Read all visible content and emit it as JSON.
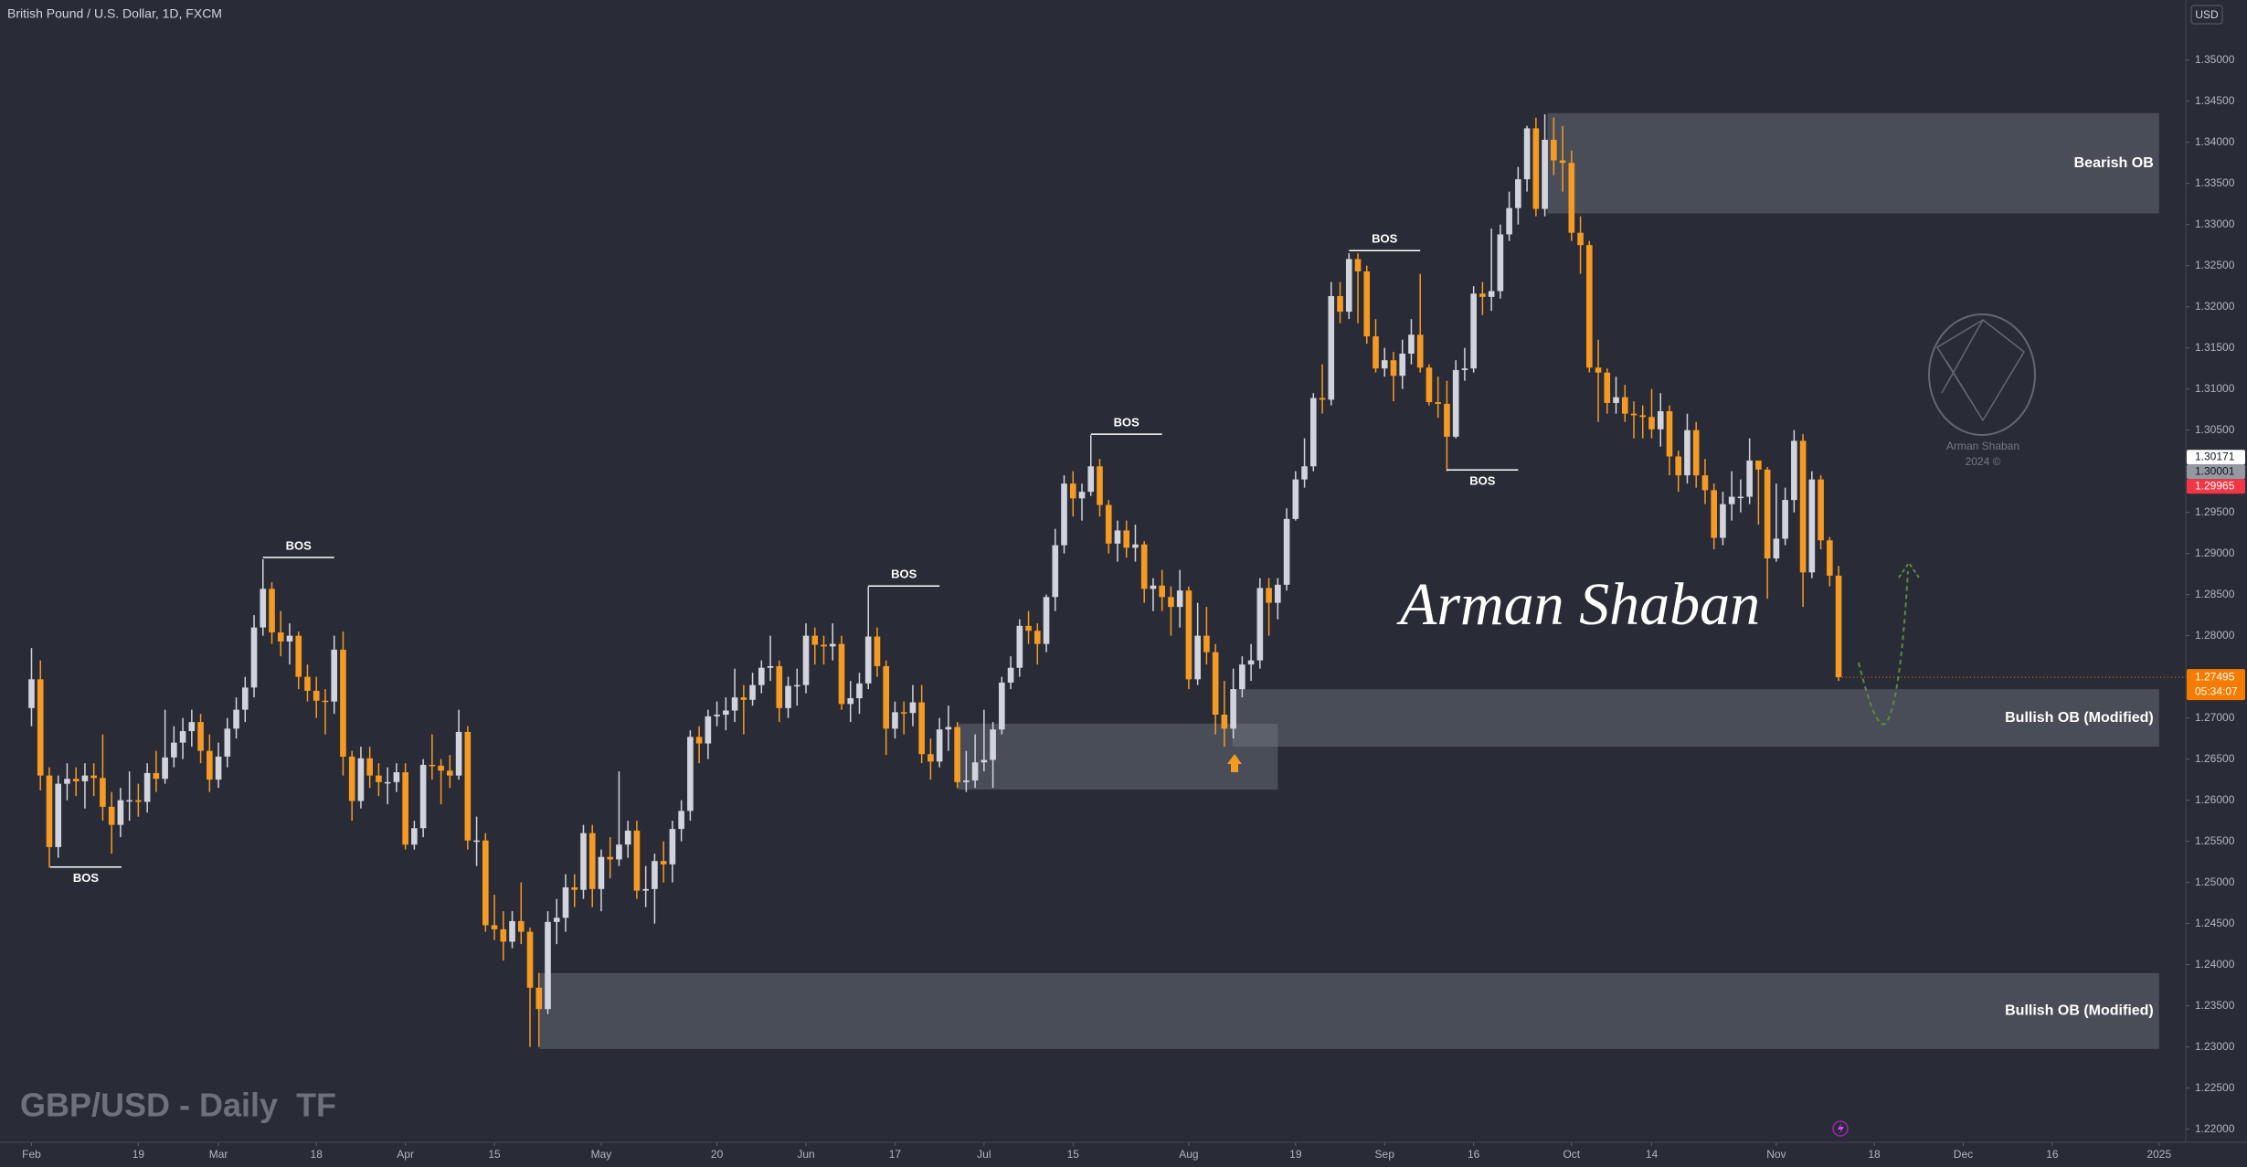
{
  "chart_data": {
    "type": "candlestick",
    "title": "British Pound / U.S. Dollar, 1D, FXCM",
    "currency": "USD",
    "watermark": "GBP/USD - Daily  TF",
    "signature": "Arman Shaban",
    "logo_text": [
      "Arman Shaban",
      "2024 ©"
    ],
    "up_color": "#d1d4dc",
    "down_color": "#f59a23",
    "xlim": [
      -3.54,
      242
    ],
    "ylim": [
      1.2184,
      1.3573
    ],
    "xticks": [
      {
        "value": 0,
        "label": "Feb"
      },
      {
        "value": 12,
        "label": "19"
      },
      {
        "value": 21,
        "label": "Mar"
      },
      {
        "value": 32,
        "label": "18"
      },
      {
        "value": 42,
        "label": "Apr"
      },
      {
        "value": 52,
        "label": "15"
      },
      {
        "value": 64,
        "label": "May"
      },
      {
        "value": 77,
        "label": "20"
      },
      {
        "value": 87,
        "label": "Jun"
      },
      {
        "value": 97,
        "label": "17"
      },
      {
        "value": 107,
        "label": "Jul"
      },
      {
        "value": 117,
        "label": "15"
      },
      {
        "value": 130,
        "label": "Aug"
      },
      {
        "value": 142,
        "label": "19"
      },
      {
        "value": 152,
        "label": "Sep"
      },
      {
        "value": 162,
        "label": "16"
      },
      {
        "value": 173,
        "label": "Oct"
      },
      {
        "value": 182,
        "label": "14"
      },
      {
        "value": 196,
        "label": "Nov"
      },
      {
        "value": 207,
        "label": "18"
      },
      {
        "value": 217,
        "label": "Dec"
      },
      {
        "value": 227,
        "label": "16"
      },
      {
        "value": 239,
        "label": "2025"
      }
    ],
    "yticks": [
      {
        "value": 1.22,
        "label": "1.22000"
      },
      {
        "value": 1.225,
        "label": "1.22500"
      },
      {
        "value": 1.23,
        "label": "1.23000"
      },
      {
        "value": 1.235,
        "label": "1.23500"
      },
      {
        "value": 1.24,
        "label": "1.24000"
      },
      {
        "value": 1.245,
        "label": "1.24500"
      },
      {
        "value": 1.25,
        "label": "1.25000"
      },
      {
        "value": 1.255,
        "label": "1.25500"
      },
      {
        "value": 1.26,
        "label": "1.26000"
      },
      {
        "value": 1.265,
        "label": "1.26500"
      },
      {
        "value": 1.27,
        "label": "1.27000"
      },
      {
        "value": 1.275,
        "label": "1.27500"
      },
      {
        "value": 1.28,
        "label": "1.28000"
      },
      {
        "value": 1.285,
        "label": "1.28500"
      },
      {
        "value": 1.29,
        "label": "1.29000"
      },
      {
        "value": 1.295,
        "label": "1.29500"
      },
      {
        "value": 1.3,
        "label": "1.30000"
      },
      {
        "value": 1.305,
        "label": "1.30500"
      },
      {
        "value": 1.31,
        "label": "1.31000"
      },
      {
        "value": 1.315,
        "label": "1.31500"
      },
      {
        "value": 1.32,
        "label": "1.32000"
      },
      {
        "value": 1.325,
        "label": "1.32500"
      },
      {
        "value": 1.33,
        "label": "1.33000"
      },
      {
        "value": 1.335,
        "label": "1.33500"
      },
      {
        "value": 1.34,
        "label": "1.34000"
      },
      {
        "value": 1.345,
        "label": "1.34500"
      },
      {
        "value": 1.35,
        "label": "1.35000"
      }
    ],
    "open": [
      1.2712,
      1.2747,
      1.263,
      1.2543,
      1.262,
      1.2626,
      1.2623,
      1.263,
      1.2627,
      1.2592,
      1.257,
      1.26,
      1.26,
      1.2598,
      1.2633,
      1.2626,
      1.2652,
      1.267,
      1.2684,
      1.2695,
      1.266,
      1.2625,
      1.2653,
      1.2687,
      1.271,
      1.2737,
      1.281,
      1.2857,
      1.2804,
      1.2793,
      1.28,
      1.275,
      1.2733,
      1.2721,
      1.272,
      1.2783,
      1.2653,
      1.2599,
      1.2651,
      1.263,
      1.2622,
      1.2622,
      1.2634,
      1.2546,
      1.2566,
      1.2643,
      1.2642,
      1.2636,
      1.263,
      1.2683,
      1.2551,
      1.2551,
      1.2448,
      1.2443,
      1.2428,
      1.2453,
      1.244,
      1.2372,
      1.2346,
      1.2452,
      1.2457,
      1.2494,
      1.2491,
      1.256,
      1.2492,
      1.2531,
      1.2528,
      1.2546,
      1.2563,
      1.249,
      1.2492,
      1.2526,
      1.2522,
      1.2565,
      1.2587,
      1.2677,
      1.2669,
      1.2702,
      1.2704,
      1.2709,
      1.2725,
      1.2722,
      1.274,
      1.2761,
      1.2763,
      1.2712,
      1.2739,
      1.274,
      1.28,
      1.2789,
      1.2787,
      1.279,
      1.2717,
      1.2724,
      1.2742,
      1.2799,
      1.2763,
      1.2687,
      1.2707,
      1.2706,
      1.2719,
      1.2656,
      1.2647,
      1.2686,
      1.2689,
      1.2622,
      1.2624,
      1.2646,
      1.2649,
      1.2686,
      1.2743,
      1.2761,
      1.2812,
      1.2806,
      1.279,
      1.2847,
      1.291,
      1.2985,
      1.2967,
      1.2975,
      1.3006,
      1.2959,
      1.2912,
      1.2928,
      1.2907,
      1.2911,
      1.2857,
      1.2861,
      1.2847,
      1.2835,
      1.2855,
      1.2747,
      1.28,
      1.278,
      1.2704,
      1.2687,
      1.2735,
      1.2765,
      1.277,
      1.2858,
      1.284,
      1.2862,
      1.2942,
      1.299,
      1.3006,
      1.3089,
      1.3087,
      1.3213,
      1.3194,
      1.3258,
      1.3243,
      1.3164,
      1.3125,
      1.3135,
      1.3116,
      1.3143,
      1.3166,
      1.3126,
      1.3084,
      1.3082,
      1.3042,
      1.3123,
      1.3125,
      1.3216,
      1.3212,
      1.3219,
      1.3288,
      1.332,
      1.3355,
      1.3417,
      1.3319,
      1.3403,
      1.3378,
      1.3375,
      1.329,
      1.3275,
      1.3126,
      1.312,
      1.3083,
      1.309,
      1.307,
      1.3068,
      1.3066,
      1.3051,
      1.3073,
      1.3018,
      1.2995,
      1.305,
      1.2995,
      1.2977,
      1.2919,
      1.296,
      1.2969,
      1.2969,
      1.3013,
      1.3002,
      1.2894,
      1.2918,
      1.2965,
      1.3037,
      1.2877,
      1.299,
      1.2916,
      1.2873
    ],
    "high": [
      1.2785,
      1.277,
      1.264,
      1.263,
      1.2645,
      1.264,
      1.2645,
      1.2645,
      1.268,
      1.261,
      1.2615,
      1.2635,
      1.262,
      1.2645,
      1.266,
      1.271,
      1.269,
      1.27,
      1.271,
      1.2705,
      1.268,
      1.267,
      1.27,
      1.2725,
      1.275,
      1.2825,
      1.2893,
      1.2865,
      1.283,
      1.2815,
      1.2805,
      1.2765,
      1.275,
      1.2735,
      1.28,
      1.2805,
      1.266,
      1.2665,
      1.2665,
      1.2645,
      1.264,
      1.2645,
      1.2645,
      1.2575,
      1.265,
      1.268,
      1.265,
      1.2655,
      1.271,
      1.269,
      1.258,
      1.256,
      1.2485,
      1.2465,
      1.2465,
      1.25,
      1.2445,
      1.239,
      1.2465,
      1.248,
      1.251,
      1.251,
      1.257,
      1.257,
      1.254,
      1.2555,
      1.2635,
      1.2575,
      1.2575,
      1.252,
      1.2535,
      1.255,
      1.2575,
      1.26,
      1.2685,
      1.269,
      1.271,
      1.272,
      1.2725,
      1.276,
      1.274,
      1.2755,
      1.277,
      1.28,
      1.277,
      1.275,
      1.276,
      1.2815,
      1.281,
      1.28,
      1.2815,
      1.28,
      1.2745,
      1.2755,
      1.286,
      1.281,
      1.277,
      1.272,
      1.272,
      1.274,
      1.274,
      1.2675,
      1.27,
      1.2715,
      1.2695,
      1.266,
      1.268,
      1.271,
      1.2695,
      1.275,
      1.2775,
      1.282,
      1.283,
      1.2815,
      1.285,
      1.293,
      1.2995,
      1.3,
      1.2985,
      1.3044,
      1.3015,
      1.2965,
      1.294,
      1.294,
      1.2935,
      1.2915,
      1.287,
      1.288,
      1.286,
      1.288,
      1.286,
      1.284,
      1.2835,
      1.279,
      1.2745,
      1.276,
      1.2775,
      1.279,
      1.287,
      1.287,
      1.287,
      1.2955,
      1.3,
      1.304,
      1.3095,
      1.313,
      1.323,
      1.323,
      1.3265,
      1.3265,
      1.325,
      1.3185,
      1.315,
      1.3145,
      1.316,
      1.3185,
      1.324,
      1.313,
      1.3115,
      1.311,
      1.3135,
      1.315,
      1.3225,
      1.323,
      1.3295,
      1.33,
      1.334,
      1.337,
      1.342,
      1.343,
      1.3434,
      1.343,
      1.342,
      1.339,
      1.331,
      1.328,
      1.316,
      1.3125,
      1.3115,
      1.3105,
      1.3085,
      1.308,
      1.31,
      1.3095,
      1.308,
      1.3025,
      1.307,
      1.306,
      1.3015,
      1.2985,
      1.2975,
      1.3,
      1.299,
      1.304,
      1.301,
      1.3005,
      1.2985,
      1.298,
      1.305,
      1.3045,
      1.3,
      1.2995,
      1.292,
      1.2885
    ],
    "low": [
      1.269,
      1.2612,
      1.2518,
      1.253,
      1.26,
      1.2605,
      1.259,
      1.2605,
      1.2575,
      1.2535,
      1.2555,
      1.2575,
      1.258,
      1.2585,
      1.261,
      1.262,
      1.264,
      1.265,
      1.2665,
      1.2645,
      1.261,
      1.2615,
      1.264,
      1.2675,
      1.2695,
      1.2725,
      1.28,
      1.279,
      1.2775,
      1.2765,
      1.2735,
      1.272,
      1.27,
      1.268,
      1.2705,
      1.263,
      1.2575,
      1.259,
      1.2615,
      1.2605,
      1.2595,
      1.261,
      1.254,
      1.254,
      1.2555,
      1.2625,
      1.2595,
      1.2615,
      1.2625,
      1.254,
      1.252,
      1.244,
      1.243,
      1.2405,
      1.242,
      1.2425,
      1.23,
      1.23,
      1.234,
      1.2425,
      1.244,
      1.247,
      1.248,
      1.247,
      1.2465,
      1.2505,
      1.252,
      1.253,
      1.248,
      1.247,
      1.245,
      1.25,
      1.25,
      1.255,
      1.2575,
      1.2645,
      1.265,
      1.269,
      1.2685,
      1.2695,
      1.268,
      1.2715,
      1.273,
      1.2745,
      1.2695,
      1.27,
      1.2715,
      1.273,
      1.2765,
      1.2765,
      1.277,
      1.271,
      1.2695,
      1.2705,
      1.2735,
      1.275,
      1.2655,
      1.2675,
      1.268,
      1.269,
      1.2645,
      1.2625,
      1.264,
      1.266,
      1.2615,
      1.261,
      1.2615,
      1.2635,
      1.2615,
      1.268,
      1.2735,
      1.275,
      1.279,
      1.2765,
      1.278,
      1.283,
      1.29,
      1.2945,
      1.294,
      1.297,
      1.2945,
      1.29,
      1.289,
      1.2895,
      1.289,
      1.284,
      1.283,
      1.283,
      1.28,
      1.281,
      1.2735,
      1.274,
      1.2765,
      1.268,
      1.2665,
      1.2675,
      1.2725,
      1.2745,
      1.276,
      1.28,
      1.282,
      1.2855,
      1.294,
      1.298,
      1.3,
      1.307,
      1.308,
      1.318,
      1.3185,
      1.318,
      1.3155,
      1.312,
      1.3115,
      1.3085,
      1.31,
      1.313,
      1.312,
      1.308,
      1.3065,
      1.3,
      1.304,
      1.311,
      1.312,
      1.319,
      1.3195,
      1.321,
      1.328,
      1.33,
      1.334,
      1.331,
      1.331,
      1.336,
      1.334,
      1.328,
      1.324,
      1.312,
      1.306,
      1.307,
      1.307,
      1.306,
      1.304,
      1.304,
      1.304,
      1.303,
      1.2995,
      1.2975,
      1.2985,
      1.298,
      1.296,
      1.2905,
      1.291,
      1.294,
      1.295,
      1.296,
      1.2935,
      1.2845,
      1.289,
      1.291,
      1.295,
      1.2835,
      1.287,
      1.2905,
      1.286,
      1.2745
    ],
    "close": [
      1.2747,
      1.263,
      1.2543,
      1.262,
      1.2626,
      1.2623,
      1.263,
      1.2627,
      1.2592,
      1.257,
      1.26,
      1.26,
      1.2598,
      1.2633,
      1.2626,
      1.2652,
      1.267,
      1.2684,
      1.2695,
      1.266,
      1.2625,
      1.2653,
      1.2687,
      1.271,
      1.2737,
      1.281,
      1.2857,
      1.2804,
      1.2793,
      1.28,
      1.275,
      1.2733,
      1.2721,
      1.272,
      1.2783,
      1.2653,
      1.2599,
      1.2651,
      1.263,
      1.2622,
      1.2622,
      1.2634,
      1.2546,
      1.2566,
      1.2643,
      1.2642,
      1.2636,
      1.263,
      1.2683,
      1.2551,
      1.2551,
      1.2448,
      1.2443,
      1.2428,
      1.2453,
      1.244,
      1.2372,
      1.2346,
      1.2452,
      1.2457,
      1.2494,
      1.2491,
      1.256,
      1.2492,
      1.2531,
      1.2528,
      1.2546,
      1.2563,
      1.249,
      1.2492,
      1.2526,
      1.2522,
      1.2565,
      1.2587,
      1.2677,
      1.2669,
      1.2702,
      1.2704,
      1.2709,
      1.2725,
      1.2722,
      1.274,
      1.2761,
      1.2763,
      1.2712,
      1.2739,
      1.274,
      1.28,
      1.2789,
      1.2787,
      1.279,
      1.2717,
      1.2724,
      1.2742,
      1.2799,
      1.2763,
      1.2687,
      1.2707,
      1.2706,
      1.2719,
      1.2656,
      1.2647,
      1.2686,
      1.2689,
      1.2622,
      1.2624,
      1.2646,
      1.2649,
      1.2686,
      1.2743,
      1.2761,
      1.2812,
      1.2806,
      1.279,
      1.2847,
      1.291,
      1.2985,
      1.2967,
      1.2975,
      1.3006,
      1.2959,
      1.2912,
      1.2928,
      1.2907,
      1.2911,
      1.2857,
      1.2861,
      1.2847,
      1.2835,
      1.2855,
      1.2747,
      1.28,
      1.278,
      1.2704,
      1.2687,
      1.2735,
      1.2765,
      1.277,
      1.2858,
      1.284,
      1.2862,
      1.2942,
      1.299,
      1.3006,
      1.3089,
      1.3087,
      1.3213,
      1.3194,
      1.3258,
      1.3243,
      1.3164,
      1.3125,
      1.3135,
      1.3116,
      1.3143,
      1.3166,
      1.3126,
      1.3084,
      1.3082,
      1.3042,
      1.3123,
      1.3125,
      1.3216,
      1.3212,
      1.3219,
      1.3288,
      1.332,
      1.3355,
      1.3417,
      1.3319,
      1.3403,
      1.3378,
      1.3375,
      1.329,
      1.3275,
      1.3126,
      1.312,
      1.3083,
      1.309,
      1.307,
      1.3068,
      1.3066,
      1.3051,
      1.3073,
      1.3018,
      1.2995,
      1.305,
      1.2995,
      1.2977,
      1.2919,
      1.296,
      1.2969,
      1.2969,
      1.3013,
      1.3002,
      1.2894,
      1.2918,
      1.2965,
      1.3037,
      1.2877,
      1.299,
      1.2916,
      1.2873,
      1.27495
    ],
    "zones": [
      {
        "label": "Bearish OB",
        "top": 1.34355,
        "bottom": 1.33135,
        "start": 170.3,
        "end": 239,
        "color": "#787b86"
      },
      {
        "label": "Bullish OB (Modified)",
        "top": 1.27349,
        "bottom": 1.26652,
        "start": 134.9,
        "end": 239,
        "color": "#787b86"
      },
      {
        "top": 1.26931,
        "bottom": 1.26129,
        "start": 104,
        "end": 140,
        "color": "#787b86"
      },
      {
        "label": "Bullish OB (Modified)",
        "top": 1.23898,
        "bottom": 1.22975,
        "start": 57.1,
        "end": 239,
        "color": "#787b86"
      }
    ],
    "bos": [
      {
        "label": "BOS",
        "price": 1.25188,
        "start": 2.1,
        "end": 10.1,
        "label_position": "below"
      },
      {
        "label": "BOS",
        "price": 1.28952,
        "start": 26,
        "end": 34,
        "label_position": "above"
      },
      {
        "label": "BOS",
        "price": 1.28604,
        "start": 94,
        "end": 102,
        "label_position": "above"
      },
      {
        "label": "BOS",
        "price": 1.30451,
        "start": 119,
        "end": 127,
        "label_position": "above"
      },
      {
        "label": "BOS",
        "price": 1.32682,
        "start": 148,
        "end": 156,
        "label_position": "above"
      },
      {
        "label": "BOS",
        "price": 1.30016,
        "start": 159,
        "end": 167,
        "label_position": "below"
      }
    ],
    "price_tags": [
      {
        "value": 1.30171,
        "color": "#ffffff",
        "text_color": "#131722"
      },
      {
        "value": 1.30001,
        "color": "#9598a1",
        "text_color": "#131722"
      },
      {
        "value": 1.29965,
        "color": "#f23645",
        "text_color": "#ffffff"
      }
    ],
    "last_price": {
      "value": 1.27495,
      "countdown": "05:34:07",
      "color": "#f57c00"
    }
  }
}
